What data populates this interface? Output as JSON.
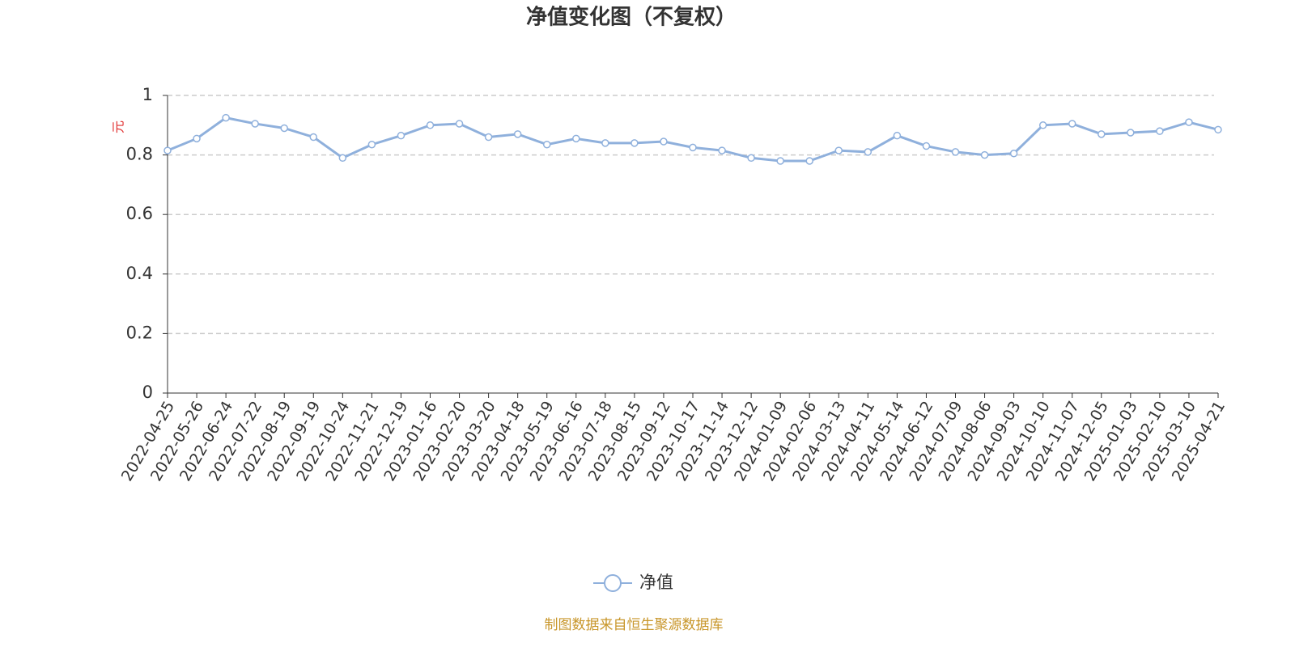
{
  "chart_data": {
    "type": "line",
    "title": "净值变化图（不复权）",
    "y_label": "元",
    "source": "制图数据来自恒生聚源数据库",
    "categories": [
      "2022-04-25",
      "2022-05-26",
      "2022-06-24",
      "2022-07-22",
      "2022-08-19",
      "2022-09-19",
      "2022-10-24",
      "2022-11-21",
      "2022-12-19",
      "2023-01-16",
      "2023-02-20",
      "2023-03-20",
      "2023-04-18",
      "2023-05-19",
      "2023-06-16",
      "2023-07-18",
      "2023-08-15",
      "2023-09-12",
      "2023-10-17",
      "2023-11-14",
      "2023-12-12",
      "2024-01-09",
      "2024-02-06",
      "2024-03-13",
      "2024-04-11",
      "2024-05-14",
      "2024-06-12",
      "2024-07-09",
      "2024-08-06",
      "2024-09-03",
      "2024-10-10",
      "2024-11-07",
      "2024-12-05",
      "2025-01-03",
      "2025-02-10",
      "2025-03-10",
      "2025-04-21"
    ],
    "series": [
      {
        "name": "净值",
        "color": "#8fb0dc",
        "values": [
          0.815,
          0.855,
          0.925,
          0.905,
          0.89,
          0.86,
          0.79,
          0.835,
          0.865,
          0.9,
          0.905,
          0.86,
          0.87,
          0.835,
          0.855,
          0.84,
          0.84,
          0.845,
          0.825,
          0.815,
          0.79,
          0.78,
          0.78,
          0.815,
          0.81,
          0.865,
          0.83,
          0.81,
          0.8,
          0.805,
          0.9,
          0.905,
          0.87,
          0.875,
          0.88,
          0.91,
          0.885
        ]
      }
    ],
    "ylim": [
      0,
      1
    ],
    "yticks": [
      0,
      0.2,
      0.4,
      0.6,
      0.8,
      1
    ],
    "grid": true
  }
}
